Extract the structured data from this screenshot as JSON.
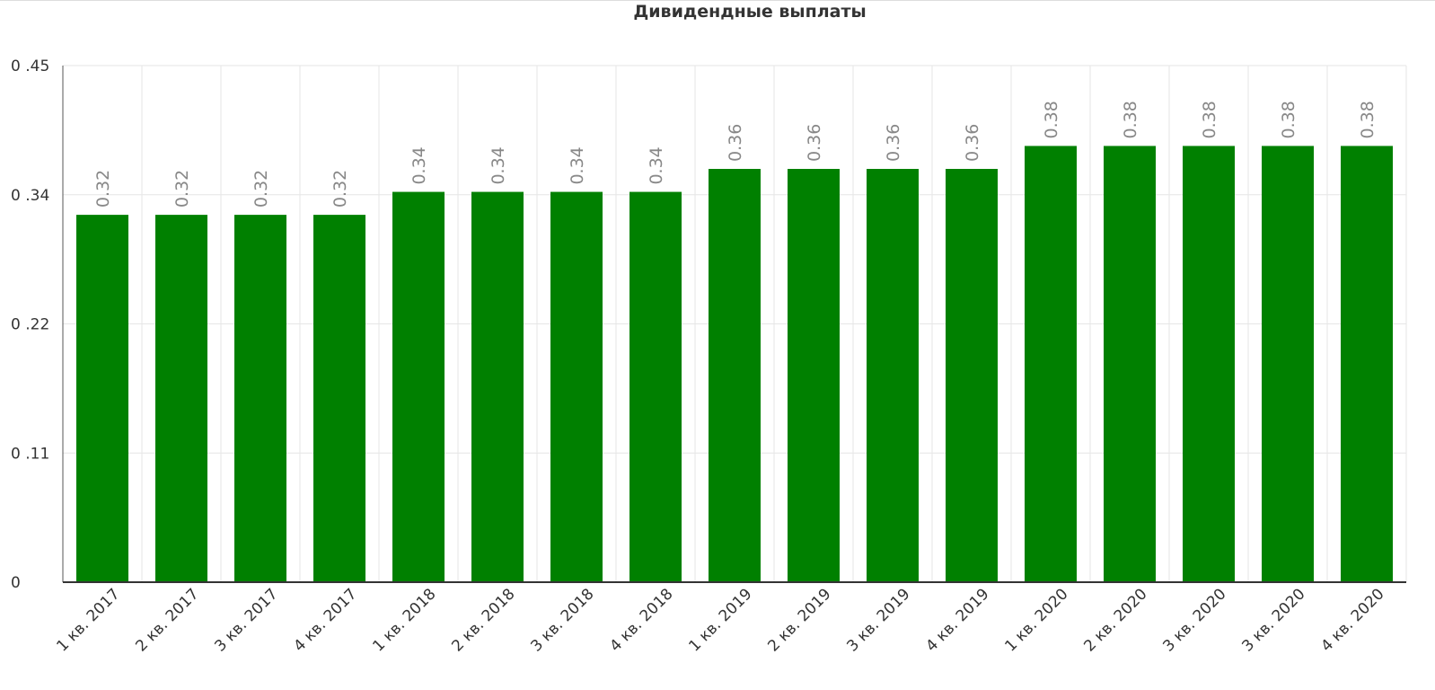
{
  "chart_data": {
    "type": "bar",
    "title": "Дивидендные выплаты",
    "categories": [
      "1 кв. 2017",
      "2 кв. 2017",
      "3 кв. 2017",
      "4 кв. 2017",
      "1 кв. 2018",
      "2 кв. 2018",
      "3 кв. 2018",
      "4 кв. 2018",
      "1 кв. 2019",
      "2 кв. 2019",
      "3 кв. 2019",
      "4 кв. 2019",
      "1 кв. 2020",
      "2 кв. 2020",
      "3 кв. 2020",
      "3 кв. 2020",
      "4 кв. 2020"
    ],
    "values": [
      0.32,
      0.32,
      0.32,
      0.32,
      0.34,
      0.34,
      0.34,
      0.34,
      0.36,
      0.36,
      0.36,
      0.36,
      0.38,
      0.38,
      0.38,
      0.38,
      0.38
    ],
    "color": "#008000",
    "ylim": [
      0,
      0.45
    ],
    "yticks": [
      0,
      {
        "value": 0.1125,
        "label": "0 .11"
      },
      {
        "value": 0.225,
        "label": "0 .22"
      },
      {
        "value": 0.3375,
        "label": "0 .34"
      },
      {
        "value": 0.45,
        "label": "0 .45"
      }
    ],
    "grid": true
  }
}
